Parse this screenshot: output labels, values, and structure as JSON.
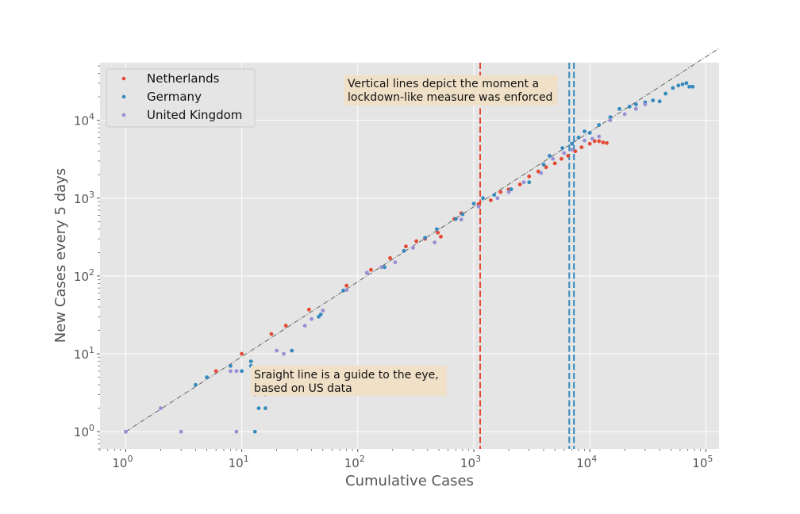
{
  "chart_data": {
    "type": "scatter",
    "xlabel": "Cumulative Cases",
    "ylabel": "New Cases every 5 days",
    "xscale": "log",
    "yscale": "log",
    "xlim": [
      0.6,
      130000
    ],
    "ylim": [
      0.6,
      55000
    ],
    "xticks": [
      1,
      10,
      100,
      1000,
      10000,
      100000
    ],
    "yticks": [
      1,
      10,
      100,
      1000,
      10000
    ],
    "tick_base": "10",
    "grid": true,
    "legend_position": "top-left",
    "colors": {
      "netherlands": "#e24a33",
      "germany": "#348abd",
      "uk": "#988ed5",
      "background": "#e5e5e5",
      "grid": "#ffffff",
      "note_box": "#f5deb3",
      "guide": "#555555"
    },
    "series": [
      {
        "name": "Netherlands",
        "color": "#e24a33",
        "x": [
          6,
          10,
          18,
          24,
          38,
          80,
          130,
          190,
          260,
          320,
          380,
          490,
          520,
          680,
          780,
          1100,
          1400,
          1700,
          2000,
          2500,
          3000,
          3600,
          4200,
          5000,
          5700,
          6500,
          7500,
          8500,
          10000,
          11000,
          12000,
          13000,
          14000
        ],
        "y": [
          6,
          10,
          18,
          23,
          37,
          75,
          120,
          170,
          240,
          280,
          300,
          360,
          320,
          540,
          640,
          840,
          940,
          1200,
          1300,
          1500,
          1900,
          2200,
          2500,
          2800,
          3200,
          3500,
          4000,
          4500,
          5000,
          5400,
          5400,
          5200,
          5100
        ]
      },
      {
        "name": "Germany",
        "color": "#348abd",
        "x": [
          1,
          4,
          5,
          8,
          10,
          12,
          12,
          13,
          14,
          16,
          27,
          46,
          48,
          75,
          120,
          170,
          250,
          380,
          480,
          700,
          800,
          1000,
          1200,
          1500,
          2100,
          3000,
          4000,
          4500,
          5800,
          7000,
          8000,
          9000,
          10000,
          12000,
          15000,
          18000,
          22000,
          25000,
          30000,
          35000,
          40000,
          45000,
          52000,
          58000,
          63000,
          68000,
          72000,
          77000
        ],
        "y": [
          1,
          4,
          5,
          7,
          6,
          7,
          8,
          1,
          2,
          2,
          11,
          30,
          32,
          65,
          110,
          130,
          210,
          310,
          400,
          540,
          620,
          850,
          1000,
          1100,
          1300,
          1600,
          2700,
          3500,
          4400,
          5000,
          6000,
          7200,
          6900,
          8700,
          11000,
          14000,
          15000,
          16000,
          17000,
          18000,
          17500,
          22000,
          26000,
          28000,
          29000,
          30000,
          27000,
          27000
        ]
      },
      {
        "name": "United Kingdom",
        "color": "#988ed5",
        "x": [
          1,
          2,
          3,
          8,
          9,
          9,
          13,
          16,
          17,
          20,
          23,
          35,
          40,
          50,
          80,
          120,
          160,
          210,
          300,
          460,
          780,
          1100,
          1600,
          2000,
          2700,
          3800,
          4800,
          6000,
          7000,
          9000,
          10500,
          12000,
          15000,
          20000,
          25000,
          30000
        ],
        "y": [
          1,
          2,
          1,
          6,
          6,
          1,
          3,
          3,
          6,
          11,
          10,
          23,
          28,
          36,
          66,
          110,
          130,
          150,
          230,
          270,
          530,
          780,
          1000,
          1200,
          1600,
          2100,
          3200,
          3800,
          4200,
          5500,
          5800,
          6200,
          10000,
          12000,
          14000,
          16000
        ]
      }
    ],
    "vertical_lines": [
      {
        "series": "Netherlands",
        "x": 1135,
        "color": "#e24a33"
      },
      {
        "series": "United Kingdom",
        "x": 6650,
        "color": "#348abd"
      },
      {
        "series": "Germany",
        "x": 7300,
        "color": "#348abd"
      }
    ],
    "guide_line": {
      "x0": 1,
      "y0": 1,
      "x1": 130000,
      "y1": 84000
    },
    "annotations": [
      {
        "id": "vertical-lines-note",
        "lines": [
          "Vertical lines depict the moment a",
          "lockdown-like measure was enforced"
        ]
      },
      {
        "id": "guide-line-note",
        "lines": [
          "Sraight line is a guide to the eye,",
          "based on US data"
        ]
      }
    ]
  }
}
